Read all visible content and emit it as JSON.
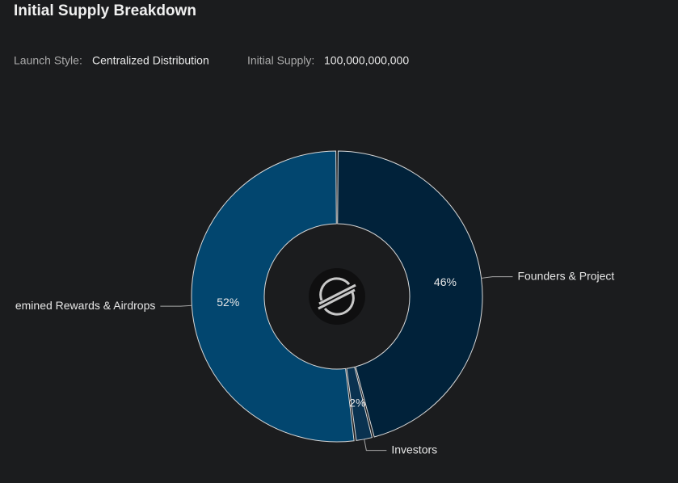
{
  "info": [
    {
      "label": "Launch Style:",
      "value": "Centralized Distribution"
    },
    {
      "label": "Initial Supply:",
      "value": "100,000,000,000"
    }
  ],
  "chart_data": {
    "type": "donut",
    "title": "Initial Supply Breakdown",
    "categories": [
      "Founders & Project",
      "Investors",
      "emined Rewards & Airdrops"
    ],
    "values": [
      46,
      2,
      52
    ],
    "value_labels": [
      "46%",
      "2%",
      "52%"
    ],
    "colors": [
      "#01223a",
      "#0a3250",
      "#02466f"
    ]
  }
}
